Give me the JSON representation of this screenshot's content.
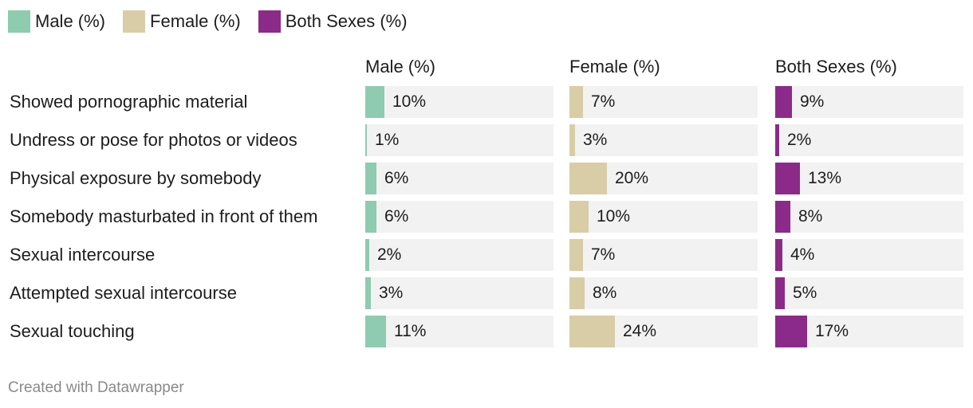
{
  "legend": [
    {
      "label": "Male (%)",
      "color": "#8ecbb0"
    },
    {
      "label": "Female (%)",
      "color": "#d8cda6"
    },
    {
      "label": "Both Sexes (%)",
      "color": "#8c2a8a"
    }
  ],
  "chart_data": {
    "type": "bar",
    "title": "",
    "xlabel": "",
    "ylabel": "",
    "xlim": [
      0,
      100
    ],
    "categories": [
      "Showed pornographic material",
      "Undress or pose for photos or videos",
      "Physical exposure by somebody",
      "Somebody masturbated in front of them",
      "Sexual intercourse",
      "Attempted sexual intercourse",
      "Sexual touching"
    ],
    "series": [
      {
        "name": "Male (%)",
        "color": "#8ecbb0",
        "values": [
          10,
          1,
          6,
          6,
          2,
          3,
          11
        ],
        "labels": [
          "10%",
          "1%",
          "6%",
          "6%",
          "2%",
          "3%",
          "11%"
        ]
      },
      {
        "name": "Female (%)",
        "color": "#d8cda6",
        "values": [
          7,
          3,
          20,
          10,
          7,
          8,
          24
        ],
        "labels": [
          "7%",
          "3%",
          "20%",
          "10%",
          "7%",
          "8%",
          "24%"
        ]
      },
      {
        "name": "Both Sexes (%)",
        "color": "#8c2a8a",
        "values": [
          9,
          2,
          13,
          8,
          4,
          5,
          17
        ],
        "labels": [
          "9%",
          "2%",
          "13%",
          "8%",
          "4%",
          "5%",
          "17%"
        ]
      }
    ]
  },
  "footer": {
    "credit": "Created with Datawrapper"
  }
}
